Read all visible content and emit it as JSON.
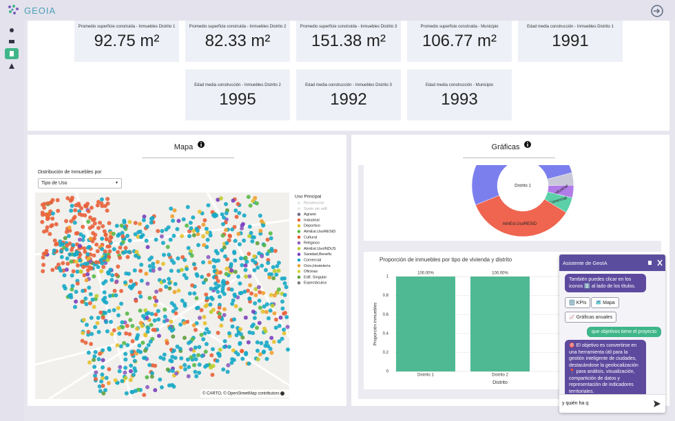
{
  "header": {
    "logo": "GEOIA"
  },
  "kpis": [
    {
      "label": "Promedio superficie construida - Inmuebles Distrito 1",
      "value": "92.75 m²"
    },
    {
      "label": "Promedio superficie construida - Inmuebles Distrito 2",
      "value": "82.33 m²"
    },
    {
      "label": "Promedio superficie construida - Inmuebles Distrito 3",
      "value": "151.38 m²"
    },
    {
      "label": "Promedio superficie construida - Municipio",
      "value": "106.77 m²"
    },
    {
      "label": "Edad media construcción - Inmuebles Distrito 1",
      "value": 1991
    },
    {
      "label": "Edad media construcción - Inmuebles Distrito 2",
      "value": 1995
    },
    {
      "label": "Edad media construcción - Inmuebles Distrito 3",
      "value": 1992
    },
    {
      "label": "Edad media construcción - Municipio",
      "value": 1993
    }
  ],
  "map_panel": {
    "title": "Mapa",
    "filter_label": "Distribución de Inmuebles por",
    "filter_value": "Tipo de Uso",
    "legend_title": "Uso Principal",
    "legend": [
      {
        "name": "Residencial",
        "color": "#c9d8dc",
        "hidden": true
      },
      {
        "name": "Suelo sin edif.",
        "color": "#d8d8d8",
        "hidden": true
      },
      {
        "name": "Agrario",
        "color": "#6f6a84"
      },
      {
        "name": "Industrial",
        "color": "#e8623c"
      },
      {
        "name": "Deportivo",
        "color": "#e4c12e"
      },
      {
        "name": "AlmEst.UsoRESID",
        "color": "#58b848"
      },
      {
        "name": "Cultural",
        "color": "#e4572e"
      },
      {
        "name": "Religioso",
        "color": "#8d5cc0"
      },
      {
        "name": "AlmEst.UsoINDUS",
        "color": "#bccc2e"
      },
      {
        "name": "Sanidad,Benefic",
        "color": "#7a3fbe"
      },
      {
        "name": "Comercial",
        "color": "#17a9c6"
      },
      {
        "name": "Ocio,Hostelería",
        "color": "#f0a030"
      },
      {
        "name": "Oficinas",
        "color": "#d4d43c"
      },
      {
        "name": "Edif. Singular",
        "color": "#5e9e3e"
      },
      {
        "name": "Espectáculos",
        "color": "#7c7c7c"
      }
    ],
    "attribution": "© CARTO, © OpenStreetMap contributors"
  },
  "charts_panel": {
    "title": "Gráficas"
  },
  "chart_data": [
    {
      "type": "donut",
      "center_label": "Distrito 1",
      "labels": [
        null,
        "Industrial",
        "Comercial",
        "AlmEst.UsoRESID",
        null
      ],
      "values": [
        4,
        4,
        5,
        35,
        52
      ],
      "colors": [
        "#c8c8d8",
        "#b27ce8",
        "#5cd0a8",
        "#ef6550",
        "#7b7fee"
      ]
    },
    {
      "type": "bar",
      "title": "Proporción de inmuebles por tipo de vivienda y distrito",
      "x_label": "Distrito",
      "y_label": "Proporción inmuebles",
      "categories": [
        "Distrito 1",
        "Distrito 2"
      ],
      "values": [
        1,
        1
      ],
      "value_labels": [
        "100.00%",
        "100.00%"
      ],
      "color": "#4fb993",
      "ylim": [
        0,
        1
      ],
      "yticks": [
        0,
        0.2,
        0.4,
        0.6,
        0.8,
        1
      ]
    }
  ],
  "chat": {
    "title": "Asistente de GeoIA",
    "messages": [
      {
        "role": "bot",
        "text": "También puedes clicar en los iconos ℹ️ al lado de los títulos."
      },
      {
        "role": "user",
        "text": "que objetivos tiene el proyecto"
      },
      {
        "role": "bot",
        "text": "🎯 El objetivo es convertirse en una herramienta útil para la gestión inteligente de ciudades, destacándose la geolocalización 📍 para análisis, visualización, compartición de datos y representación de indicadores territoriales."
      }
    ],
    "buttons": [
      "🔢 KPIs",
      "🗺️ Mapa",
      "📈 Gráficas anuales"
    ],
    "input": "y quién ha q"
  }
}
